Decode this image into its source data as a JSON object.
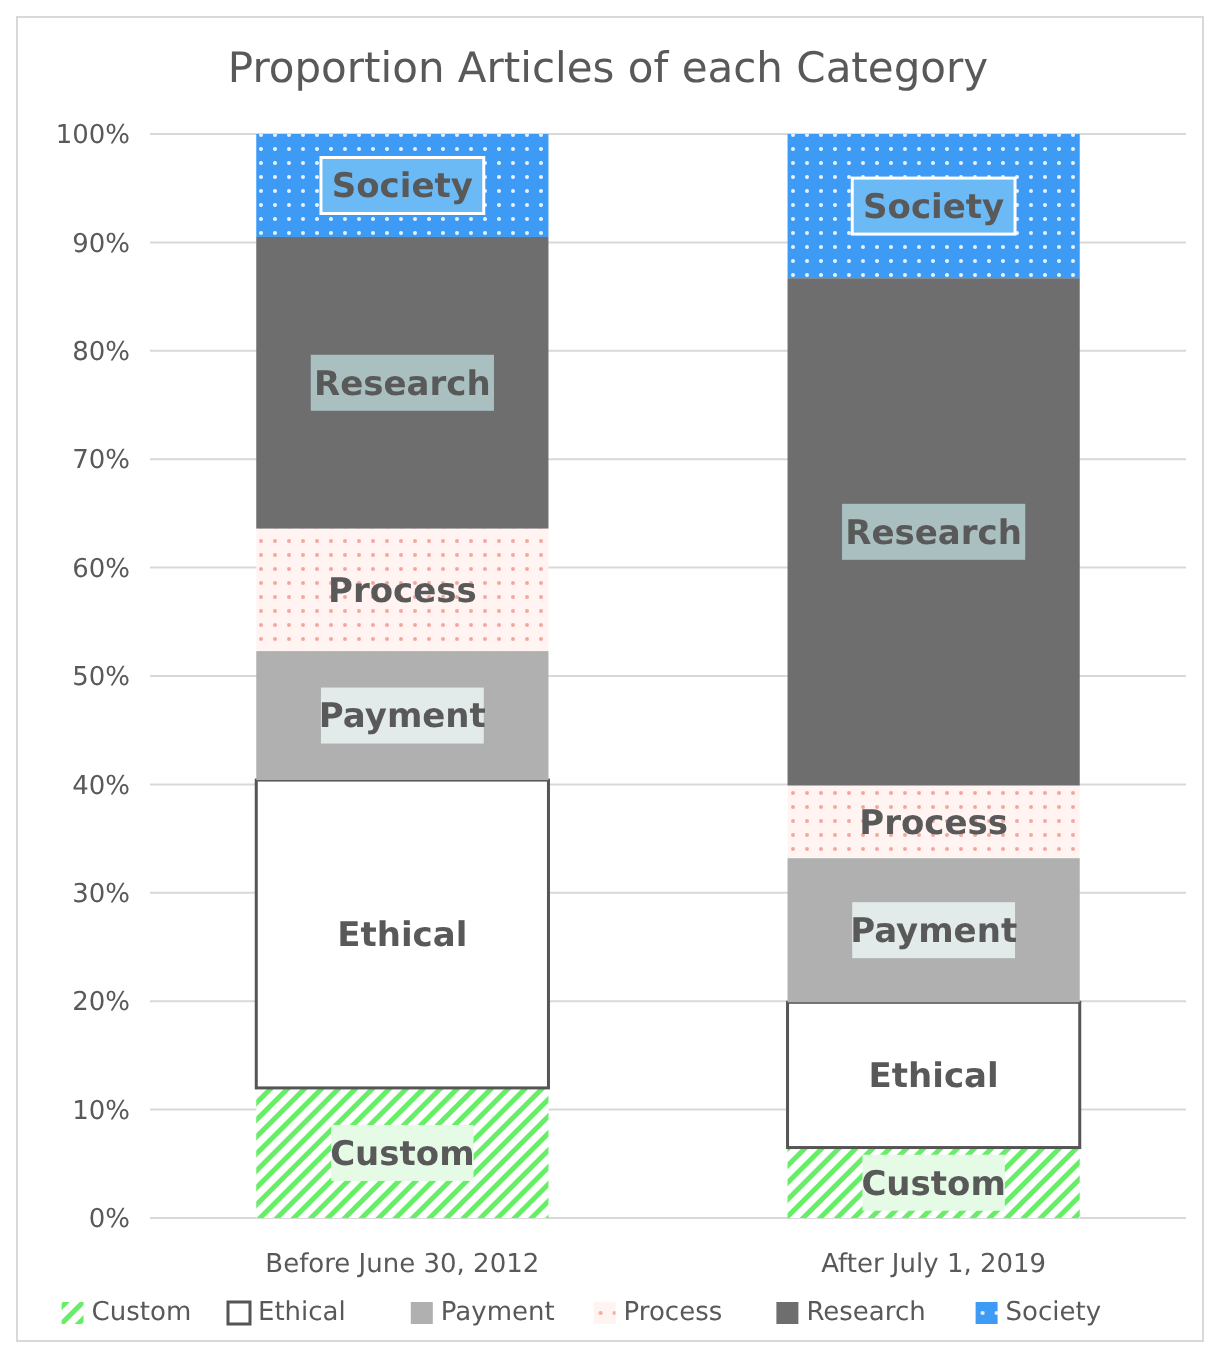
{
  "chart_data": {
    "type": "bar",
    "title": "Proportion Articles of each Category",
    "categories": [
      "Before June 30, 2012",
      "After July 1, 2019"
    ],
    "stacked": true,
    "ylim": [
      0,
      100
    ],
    "yticks": [
      {
        "value": 0,
        "label": "0%"
      },
      {
        "value": 10,
        "label": "10%"
      },
      {
        "value": 20,
        "label": "20%"
      },
      {
        "value": 30,
        "label": "30%"
      },
      {
        "value": 40,
        "label": "40%"
      },
      {
        "value": 50,
        "label": "50%"
      },
      {
        "value": 60,
        "label": "60%"
      },
      {
        "value": 70,
        "label": "70%"
      },
      {
        "value": 80,
        "label": "80%"
      },
      {
        "value": 90,
        "label": "90%"
      },
      {
        "value": 100,
        "label": "100%"
      }
    ],
    "grid": "y",
    "legend": "bottom",
    "series": [
      {
        "name": "Custom",
        "color": "#66ee66",
        "values": [
          12.0,
          6.5
        ]
      },
      {
        "name": "Ethical",
        "color": "#ffffff",
        "values": [
          28.4,
          13.4
        ]
      },
      {
        "name": "Payment",
        "color": "#b0b0b0",
        "values": [
          11.9,
          13.3
        ]
      },
      {
        "name": "Process",
        "color": "#f4a8a0",
        "values": [
          11.3,
          6.7
        ]
      },
      {
        "name": "Research",
        "color": "#6e6e6e",
        "values": [
          26.9,
          46.8
        ]
      },
      {
        "name": "Society",
        "color": "#3d9bf5",
        "values": [
          9.5,
          13.3
        ]
      }
    ]
  }
}
